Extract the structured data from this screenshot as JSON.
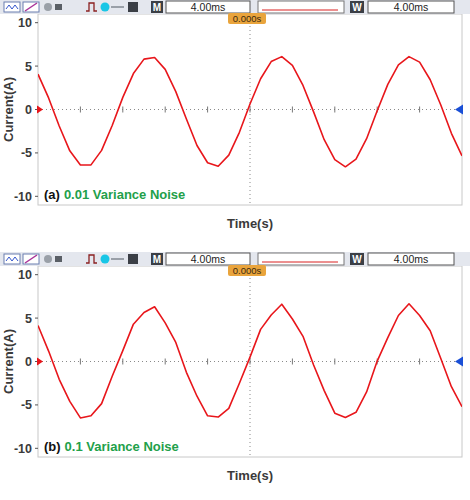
{
  "chart_data": [
    {
      "type": "line",
      "header": {
        "m_label": "M",
        "m_value": "4.00ms",
        "w_label": "W",
        "w_value": "4.00ms",
        "trigger": "0.000s"
      },
      "panel_label": "(a)",
      "annotation": "0.01 Variance Noise",
      "x_label": "Time(s)",
      "y_label": "Current(A)",
      "x": [
        0,
        1,
        2,
        3,
        4,
        5,
        6,
        7,
        8,
        9,
        10,
        11,
        12,
        13,
        14,
        15,
        16,
        17,
        18,
        19,
        20,
        21,
        22,
        23,
        24,
        25,
        26,
        27,
        28,
        29,
        30,
        31,
        32,
        33,
        34,
        35,
        36,
        37,
        38,
        39,
        40
      ],
      "series": [
        {
          "color": "#e8161b",
          "values": [
            4.07,
            1.33,
            -1.9,
            -4.76,
            -6.39,
            -6.38,
            -4.71,
            -1.84,
            1.4,
            4.14,
            5.8,
            5.98,
            4.62,
            2.06,
            -1.1,
            -4.15,
            -6.13,
            -6.53,
            -5.25,
            -2.63,
            0.64,
            3.54,
            5.52,
            6.09,
            5.09,
            2.77,
            -0.27,
            -3.48,
            -5.78,
            -6.6,
            -5.72,
            -3.36,
            -0.14,
            2.89,
            5.15,
            6.09,
            5.46,
            3.43,
            0.52,
            -2.74,
            -5.34
          ]
        }
      ],
      "xlim": [
        0,
        40
      ],
      "xticks": [
        0,
        4,
        8,
        12,
        16,
        20,
        24,
        28,
        32,
        36,
        40
      ],
      "ylim": [
        -11,
        11
      ],
      "yticks": [
        -10,
        -5,
        0,
        5,
        10
      ],
      "grid": false,
      "tick_labels": "y"
    },
    {
      "type": "line",
      "header": {
        "m_label": "M",
        "m_value": "4.00ms",
        "w_label": "W",
        "w_value": "4.00ms",
        "trigger": "0.000s"
      },
      "panel_label": "(b)",
      "annotation": "0.1 Variance Noise",
      "x_label": "Time(s)",
      "y_label": "Current(A)",
      "x": [
        0,
        1,
        2,
        3,
        4,
        5,
        6,
        7,
        8,
        9,
        10,
        11,
        12,
        13,
        14,
        15,
        16,
        17,
        18,
        19,
        20,
        21,
        22,
        23,
        24,
        25,
        26,
        27,
        28,
        29,
        30,
        31,
        32,
        33,
        34,
        35,
        36,
        37,
        38,
        39,
        40
      ],
      "series": [
        {
          "color": "#e8161b",
          "values": [
            4.15,
            1.2,
            -2.05,
            -4.6,
            -6.5,
            -6.25,
            -4.85,
            -1.7,
            1.25,
            4.3,
            5.65,
            6.3,
            4.45,
            2.2,
            -1.25,
            -4.0,
            -6.25,
            -6.4,
            -5.4,
            -2.5,
            0.5,
            3.7,
            5.35,
            6.6,
            4.9,
            2.9,
            -0.4,
            -3.35,
            -5.95,
            -6.45,
            -5.85,
            -3.5,
            0.05,
            2.75,
            5.3,
            6.65,
            5.3,
            3.55,
            0.35,
            -2.9,
            -5.2
          ]
        }
      ],
      "xlim": [
        0,
        40
      ],
      "xticks": [
        0,
        4,
        8,
        12,
        16,
        20,
        24,
        28,
        32,
        36,
        40
      ],
      "ylim": [
        -11,
        11
      ],
      "yticks": [
        -10,
        -5,
        0,
        5,
        10
      ],
      "grid": false,
      "tick_labels": "y"
    }
  ]
}
